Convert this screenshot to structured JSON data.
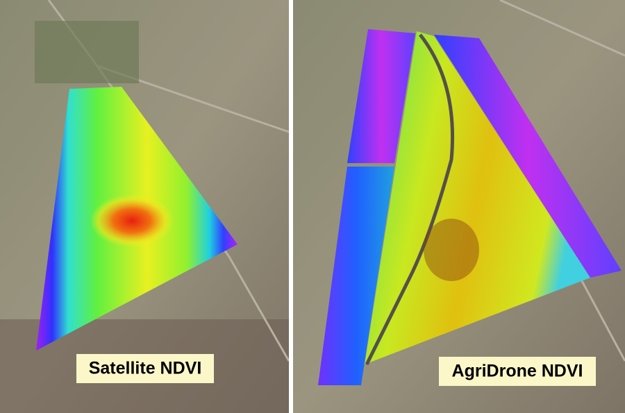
{
  "panels": [
    {
      "label": "Satellite NDVI"
    },
    {
      "label": "AgriDrone NDVI"
    }
  ]
}
